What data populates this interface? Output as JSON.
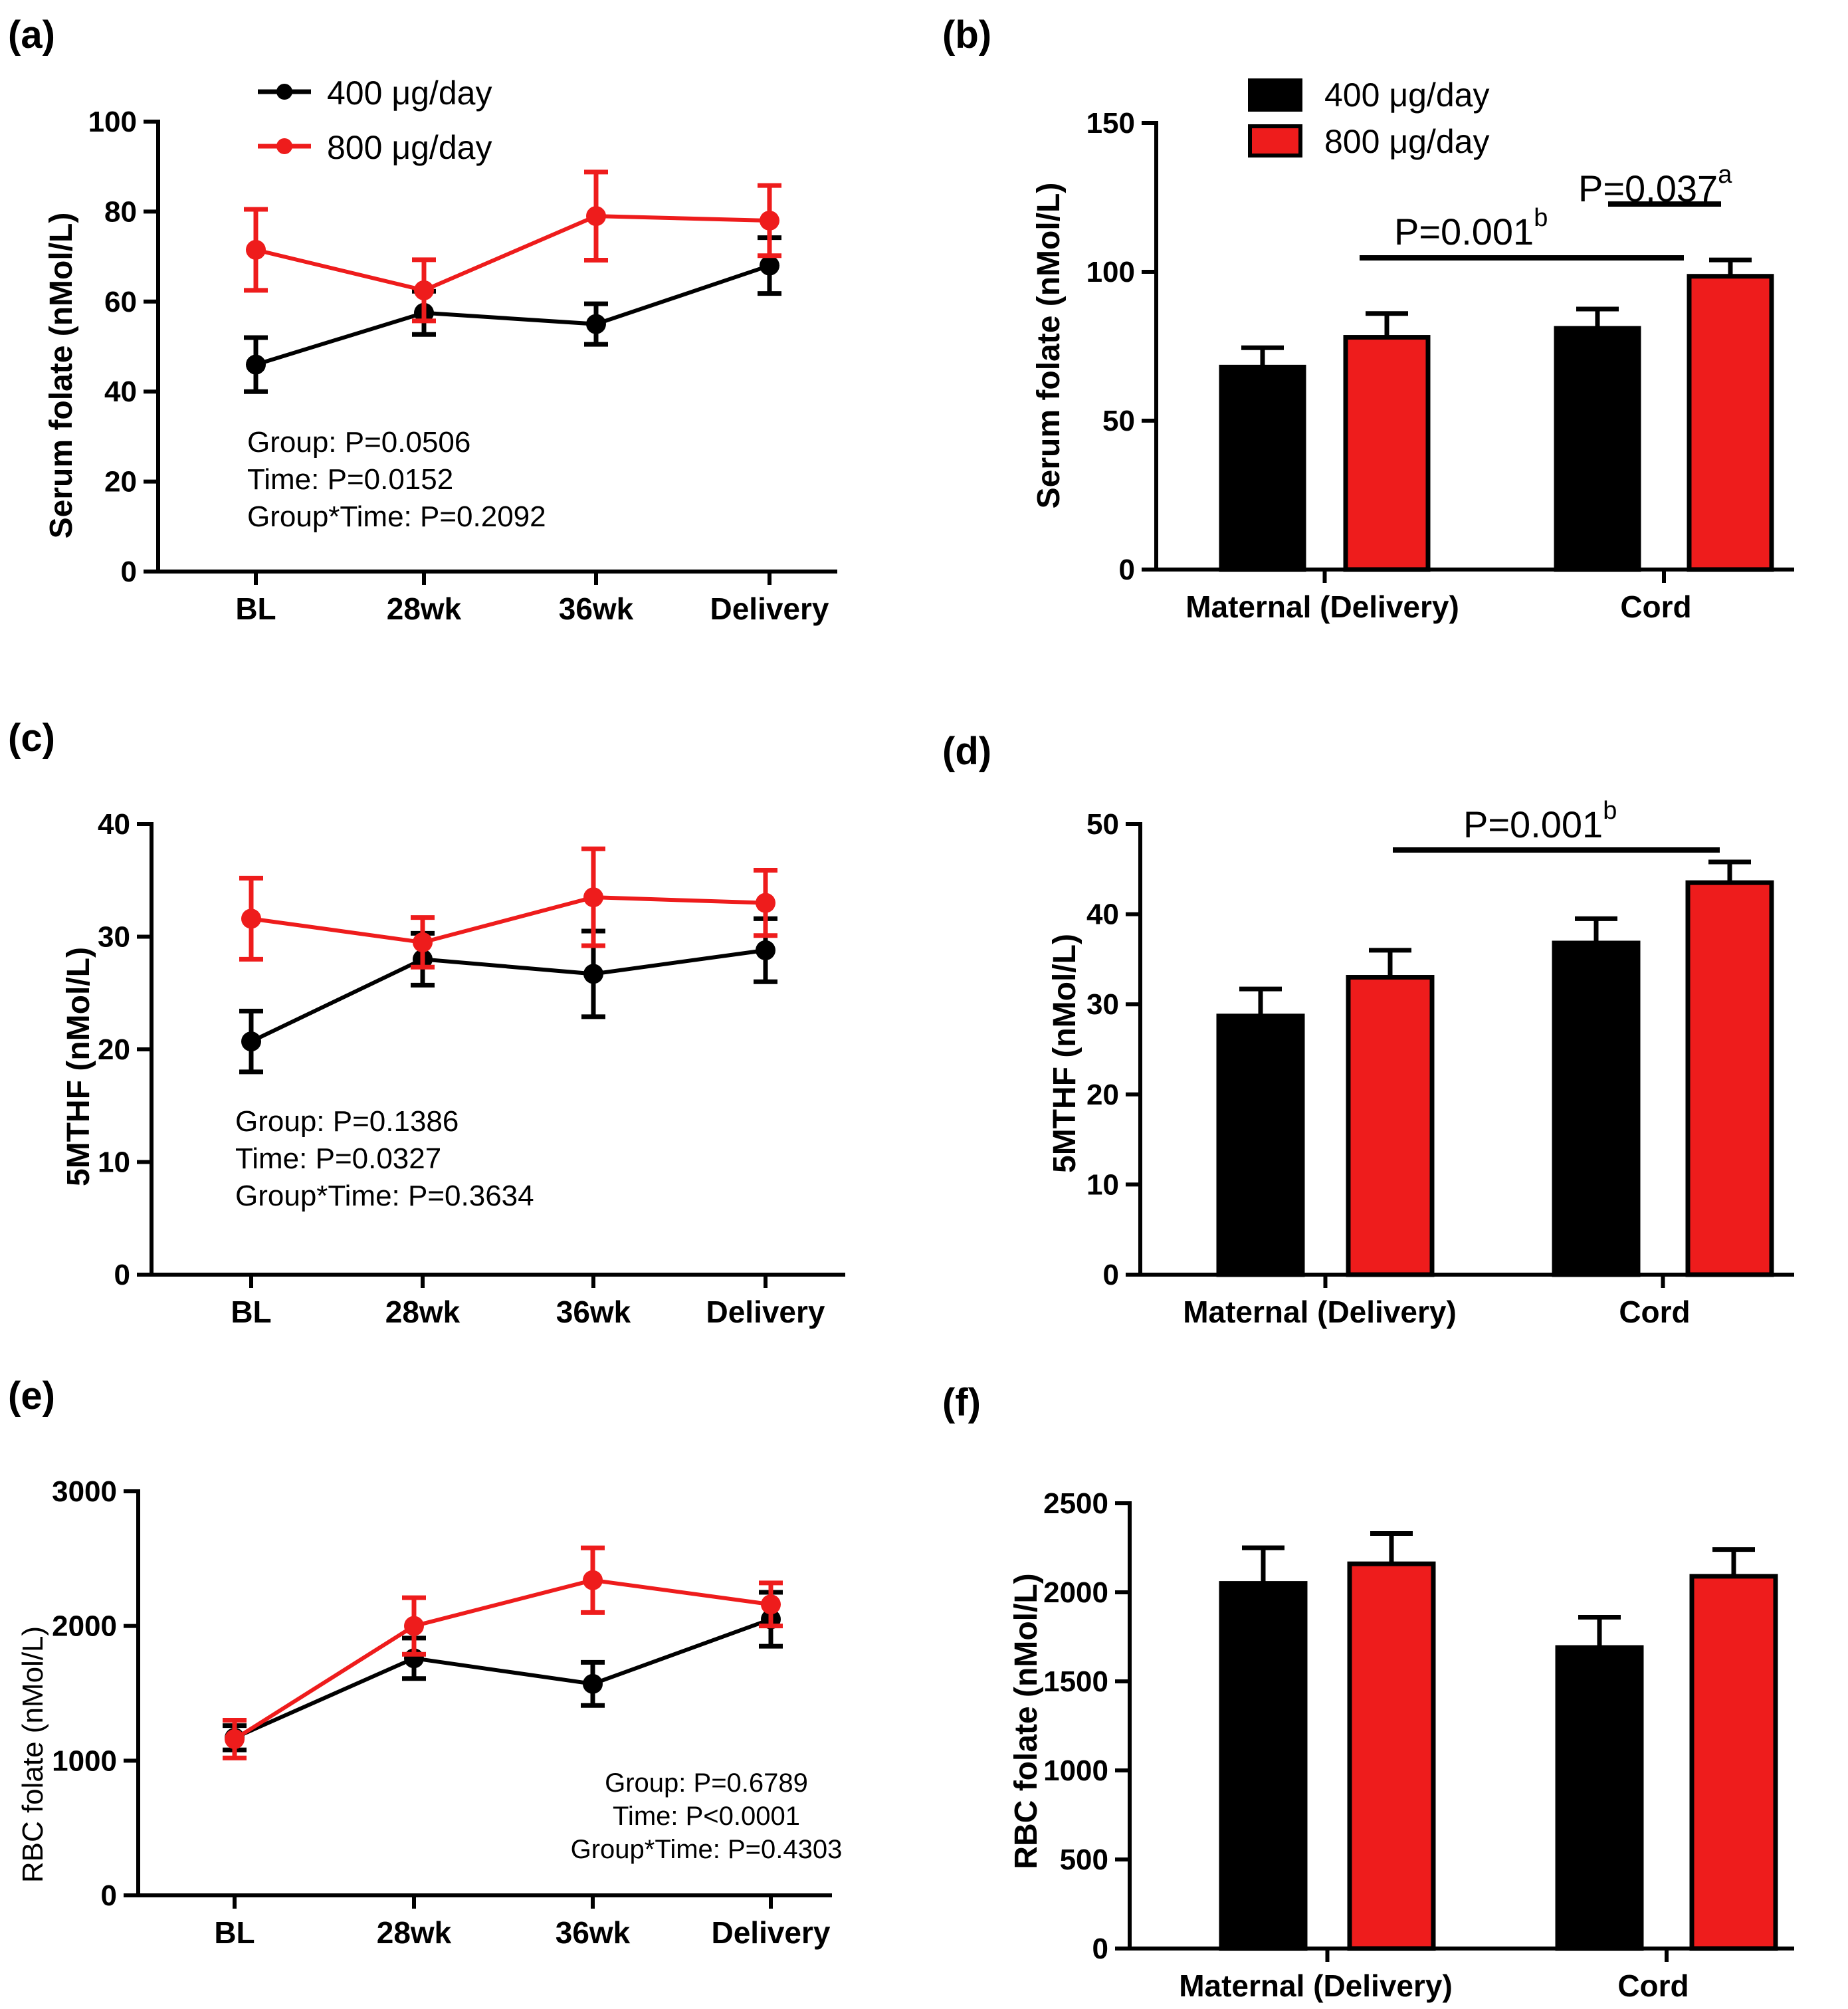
{
  "legend": {
    "series": [
      {
        "name": "400 μg/day",
        "color": "#000000"
      },
      {
        "name": "800 μg/day",
        "color": "#ee1c1c"
      }
    ]
  },
  "colors": {
    "black": "#000000",
    "red": "#ee1c1c",
    "axis": "#000000"
  },
  "chart_data": [
    {
      "id": "a",
      "panel_label": "(a)",
      "type": "line",
      "categories": [
        "BL",
        "28wk",
        "36wk",
        "Delivery"
      ],
      "ylabel": "Serum folate  (nMol/L)",
      "ylim": [
        0,
        100
      ],
      "yticks": [
        "0",
        "20",
        "40",
        "60",
        "80",
        "100"
      ],
      "series": [
        {
          "name": "400 μg/day",
          "color": "#000000",
          "values": [
            46,
            57.5,
            55,
            68
          ],
          "errors": [
            6,
            4.8,
            4.5,
            6.2
          ]
        },
        {
          "name": "800 μg/day",
          "color": "#ee1c1c",
          "values": [
            71.5,
            62.5,
            79,
            78
          ],
          "errors": [
            9,
            6.8,
            9.8,
            7.8
          ]
        }
      ],
      "stats": [
        "Group: P=0.0506",
        "Time: P=0.0152",
        "Group*Time: P=0.2092"
      ]
    },
    {
      "id": "b",
      "panel_label": "(b)",
      "type": "bar",
      "categories": [
        "Maternal (Delivery)",
        "Cord"
      ],
      "ylabel": "Serum folate  (nMol/L)",
      "ylim": [
        0,
        150
      ],
      "yticks": [
        "0",
        "50",
        "100",
        "150"
      ],
      "series": [
        {
          "name": "400 μg/day",
          "color": "#000000",
          "values": [
            68,
            81
          ],
          "errors": [
            6.5,
            6.5
          ]
        },
        {
          "name": "800 μg/day",
          "color": "#ee1c1c",
          "values": [
            78,
            98.5
          ],
          "errors": [
            8,
            5.5
          ]
        }
      ],
      "annotations": [
        {
          "text": "P=0.001",
          "sup": "b"
        },
        {
          "text": "P=0.037",
          "sup": "a"
        }
      ]
    },
    {
      "id": "c",
      "panel_label": "(c)",
      "type": "line",
      "categories": [
        "BL",
        "28wk",
        "36wk",
        "Delivery"
      ],
      "ylabel": "5MTHF (nMol/L)",
      "ylim": [
        0,
        40
      ],
      "yticks": [
        "0",
        "10",
        "20",
        "30",
        "40"
      ],
      "series": [
        {
          "name": "400 μg/day",
          "color": "#000000",
          "values": [
            20.7,
            28,
            26.7,
            28.8
          ],
          "errors": [
            2.7,
            2.3,
            3.8,
            2.8
          ]
        },
        {
          "name": "800 μg/day",
          "color": "#ee1c1c",
          "values": [
            31.6,
            29.5,
            33.5,
            33
          ],
          "errors": [
            3.6,
            2.2,
            4.3,
            2.9
          ]
        }
      ],
      "stats": [
        "Group: P=0.1386",
        "Time: P=0.0327",
        "Group*Time: P=0.3634"
      ]
    },
    {
      "id": "d",
      "panel_label": "(d)",
      "type": "bar",
      "categories": [
        "Maternal (Delivery)",
        "Cord"
      ],
      "ylabel": "5MTHF (nMol/L)",
      "ylim": [
        0,
        50
      ],
      "yticks": [
        "0",
        "10",
        "20",
        "30",
        "40",
        "50"
      ],
      "series": [
        {
          "name": "400 μg/day",
          "color": "#000000",
          "values": [
            28.7,
            36.8
          ],
          "errors": [
            3,
            2.7
          ]
        },
        {
          "name": "800 μg/day",
          "color": "#ee1c1c",
          "values": [
            33,
            43.5
          ],
          "errors": [
            3,
            2.3
          ]
        }
      ],
      "annotations": [
        {
          "text": "P=0.001",
          "sup": "b"
        }
      ]
    },
    {
      "id": "e",
      "panel_label": "(e)",
      "type": "line",
      "categories": [
        "BL",
        "28wk",
        "36wk",
        "Delivery"
      ],
      "ylabel": "RBC folate (nMol/L)",
      "ylim": [
        0,
        3000
      ],
      "yticks": [
        "0",
        "1000",
        "2000",
        "3000"
      ],
      "series": [
        {
          "name": "400 μg/day",
          "color": "#000000",
          "values": [
            1170,
            1760,
            1570,
            2050
          ],
          "errors": [
            90,
            150,
            160,
            200
          ]
        },
        {
          "name": "800 μg/day",
          "color": "#ee1c1c",
          "values": [
            1160,
            2000,
            2340,
            2160
          ],
          "errors": [
            140,
            210,
            240,
            160
          ]
        }
      ],
      "stats": [
        "Group: P=0.6789",
        "Time: P<0.0001",
        "Group*Time: P=0.4303"
      ]
    },
    {
      "id": "f",
      "panel_label": "(f)",
      "type": "bar",
      "categories": [
        "Maternal (Delivery)",
        "Cord"
      ],
      "ylabel": "RBC folate (nMol/L)",
      "ylim": [
        0,
        2500
      ],
      "yticks": [
        "0",
        "500",
        "1000",
        "1500",
        "2000",
        "2500"
      ],
      "series": [
        {
          "name": "400 μg/day",
          "color": "#000000",
          "values": [
            2050,
            1690
          ],
          "errors": [
            200,
            170
          ]
        },
        {
          "name": "800 μg/day",
          "color": "#ee1c1c",
          "values": [
            2160,
            2090
          ],
          "errors": [
            170,
            150
          ]
        }
      ],
      "annotations": []
    }
  ]
}
